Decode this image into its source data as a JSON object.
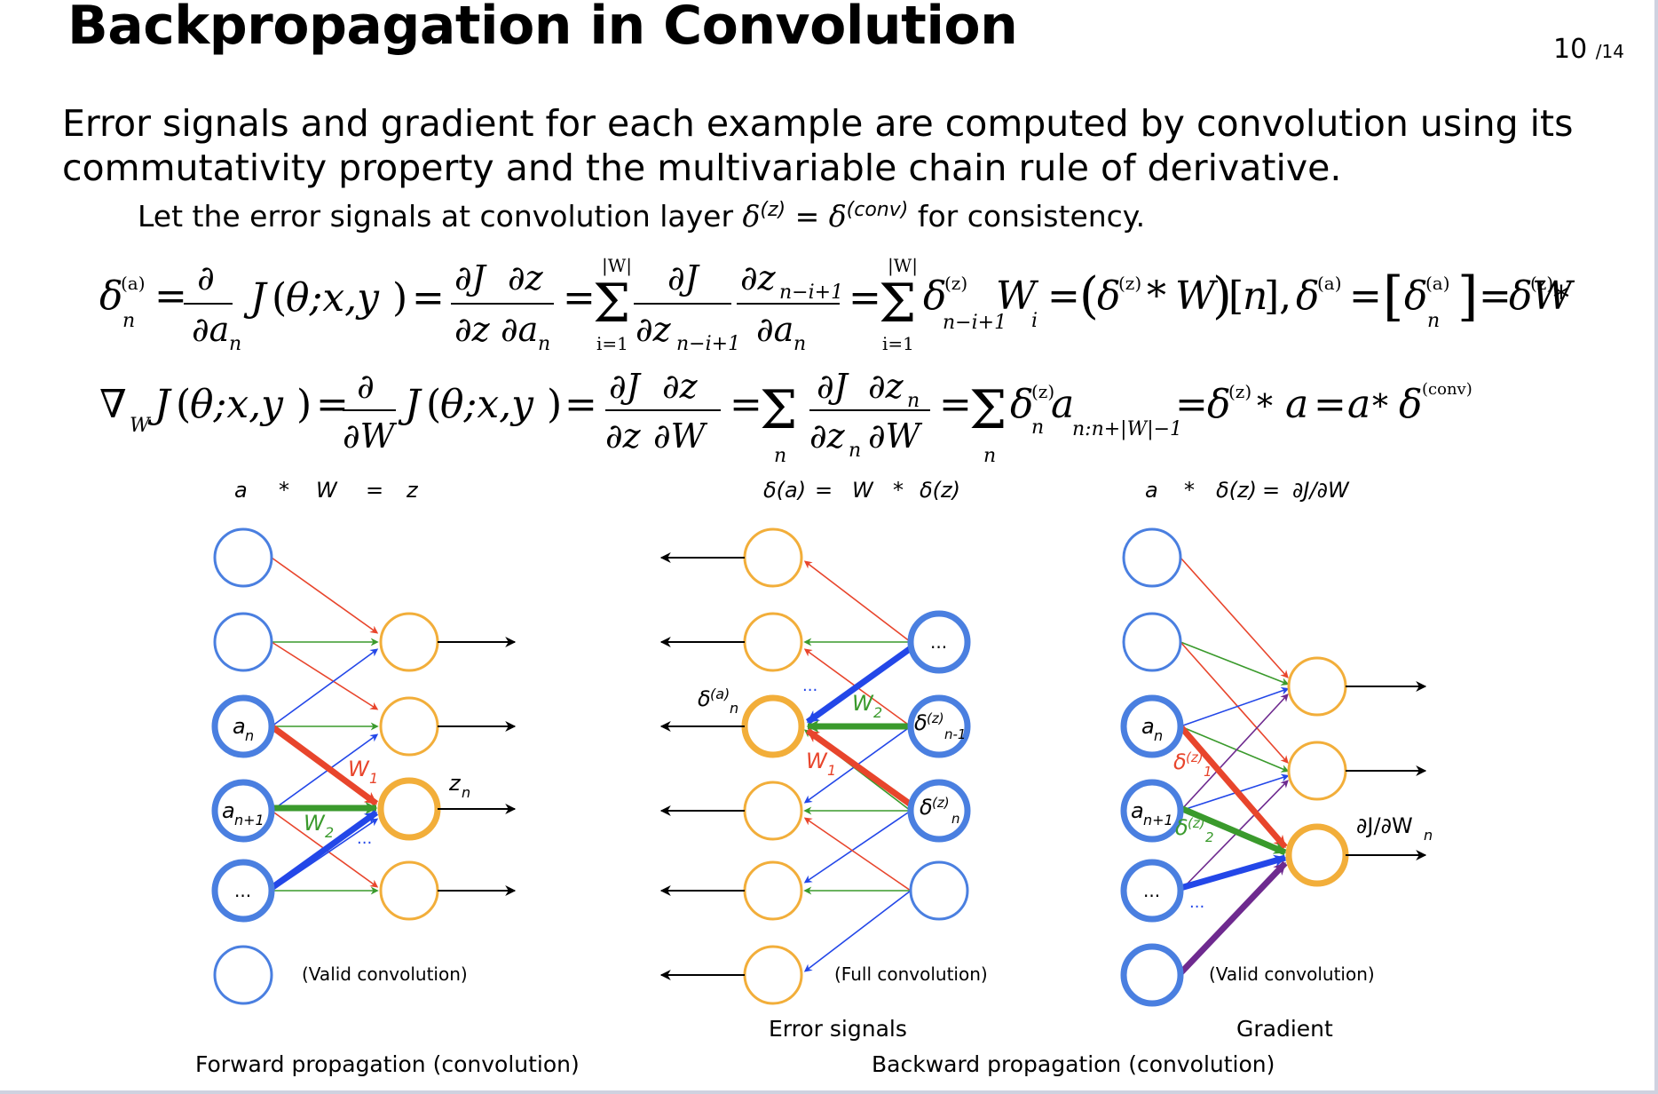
{
  "slide": {
    "title": "Backpropagation in Convolution",
    "page_current": "10",
    "page_total": "/14",
    "paragraph_line1": "Error signals and gradient for each example are computed by convolution using its",
    "paragraph_line2": "commutativity property and the multivariable chain rule of derivative.",
    "note_prefix": "Let the error signals at convolution layer ",
    "note_delta": "δ",
    "note_sup_z": "(z)",
    "note_eq": " = ",
    "note_sup_conv": "(conv)",
    "note_suffix": " for consistency."
  },
  "equations": {
    "eq1": "δn(a) = ∂/∂an J(θ;x,y) = ∂J/∂z ∂z/∂an = Σi=1..|W| ∂J/∂zn−i+1 ∂zn−i+1/∂an = Σi=1..|W| δn−i+1(z) Wi = (δ(z) * W)[n], δ(a) = [δn(a)] = δ(z) * W",
    "eq2": "∇W J(θ;x,y) = ∂/∂W J(θ;x,y) = ∂J/∂z ∂z/∂W = Σn ∂J/∂zn ∂zn/∂W = Σn δn(z) an:n+|W|−1 = δ(z) * a = a * δ(conv)"
  },
  "panels": {
    "forward": {
      "formula": [
        "a",
        "*",
        "W",
        "=",
        "z"
      ],
      "node_an": "a",
      "node_an_sub": "n",
      "node_an1": "a",
      "node_an1_sub": "n+1",
      "node_dots": "...",
      "label_w1": "W",
      "label_w1_sub": "1",
      "label_w2": "W",
      "label_w2_sub": "2",
      "label_dots": "...",
      "label_zn": "z",
      "label_zn_sub": "n",
      "conv_note": "(Valid convolution)",
      "caption": "Forward propagation (convolution)"
    },
    "error": {
      "formula": [
        "δ(a)",
        "=",
        "W",
        "*",
        "δ(z)"
      ],
      "node_dots": "...",
      "node_dz_n1": "δ",
      "node_dz_n1_sup": "(z)",
      "node_dz_n1_sub": "n-1",
      "node_dz_n": "δ",
      "node_dz_n_sup": "(z)",
      "node_dz_n_sub": "n",
      "label_da": "δ",
      "label_da_sup": "(a)",
      "label_da_sub": "n",
      "label_w1": "W",
      "label_w1_sub": "1",
      "label_w2": "W",
      "label_w2_sub": "2",
      "label_dots": "...",
      "conv_note": "(Full convolution)",
      "caption": "Error signals"
    },
    "gradient": {
      "formula": [
        "a",
        "*",
        "δ(z)",
        "=",
        "∂J/∂W"
      ],
      "node_an": "a",
      "node_an_sub": "n",
      "node_an1": "a",
      "node_an1_sub": "n+1",
      "node_dots": "...",
      "label_d1": "δ",
      "label_d1_sup": "(z)",
      "label_d1_sub": "1",
      "label_d2": "δ",
      "label_d2_sup": "(z)",
      "label_d2_sub": "2",
      "label_dots": "...",
      "label_out": "∂J/∂W",
      "label_out_sub": "n",
      "conv_note": "(Valid convolution)",
      "caption": "Gradient"
    },
    "backward_caption": "Backward propagation (convolution)"
  },
  "colors": {
    "blue_node": "#4a7fe0",
    "orange_node": "#f2ae3a",
    "red": "#e8452c",
    "green": "#3a9a2c",
    "blue": "#2347e8",
    "purple": "#6e2a8f"
  }
}
